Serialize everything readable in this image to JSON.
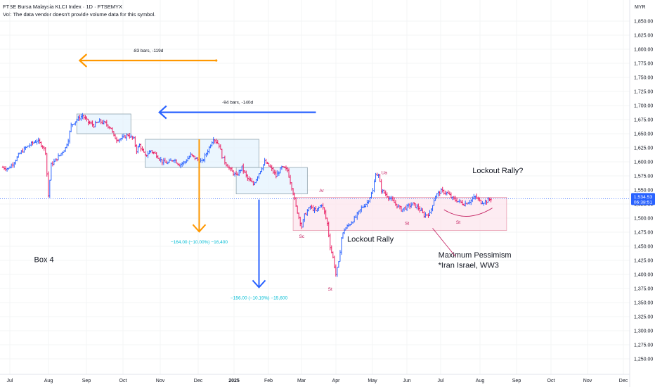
{
  "header": {
    "title": "FTSE Bursa Malaysia KLCI Index · 1D · FTSEMYX",
    "volume_note": "Vol: The data vendor doesn't provide volume data for this symbol."
  },
  "currency": "MYR",
  "price_badge": {
    "price": "1,534.53",
    "countdown": "06:38:51",
    "color": "#2962ff"
  },
  "colors": {
    "up": "#2962ff",
    "down": "#e91e63",
    "orange": "#ff9800",
    "blue": "#2962ff",
    "box": "#e3f2fd",
    "pink_box": "#fce4ec",
    "measure_text": "#00bcd4",
    "annotation": "#c2185b"
  },
  "chart_data": {
    "type": "ohlc",
    "y_ticks": [
      1850,
      1825,
      1800,
      1775,
      1750,
      1725,
      1700,
      1675,
      1650,
      1625,
      1600,
      1575,
      1550,
      1525,
      1500,
      1475,
      1450,
      1425,
      1400,
      1375,
      1350,
      1325,
      1300,
      1275,
      1250
    ],
    "y_tick_labels": [
      "1,850.00",
      "1,825.00",
      "1,800.00",
      "1,775.00",
      "1,750.00",
      "1,725.00",
      "1,700.00",
      "1,675.00",
      "1,650.00",
      "1,625.00",
      "1,600.00",
      "1,575.00",
      "1,550.00",
      "1,525.00",
      "1,500.00",
      "1,475.00",
      "1,450.00",
      "1,425.00",
      "1,400.00",
      "1,375.00",
      "1,350.00",
      "1,325.00",
      "1,300.00",
      "1,275.00",
      "1,250.00"
    ],
    "x_ticks": [
      "Jul",
      "Aug",
      "Sep",
      "Oct",
      "Nov",
      "Dec",
      "2025",
      "Feb",
      "Mar",
      "Apr",
      "May",
      "Jun",
      "Jul",
      "Aug",
      "Sep",
      "Oct",
      "Nov",
      "Dec"
    ],
    "series_path": [
      [
        0,
        1590
      ],
      [
        2,
        1588
      ],
      [
        4,
        1600
      ],
      [
        6,
        1615
      ],
      [
        8,
        1625
      ],
      [
        10,
        1632
      ],
      [
        12,
        1638
      ],
      [
        14,
        1628
      ],
      [
        15,
        1618
      ],
      [
        16,
        1540
      ],
      [
        17,
        1595
      ],
      [
        18,
        1600
      ],
      [
        20,
        1612
      ],
      [
        22,
        1625
      ],
      [
        23,
        1640
      ],
      [
        24,
        1665
      ],
      [
        26,
        1675
      ],
      [
        28,
        1682
      ],
      [
        30,
        1670
      ],
      [
        32,
        1665
      ],
      [
        34,
        1672
      ],
      [
        36,
        1668
      ],
      [
        38,
        1660
      ],
      [
        39,
        1645
      ],
      [
        40,
        1640
      ],
      [
        42,
        1642
      ],
      [
        44,
        1648
      ],
      [
        46,
        1640
      ],
      [
        47,
        1620
      ],
      [
        48,
        1630
      ],
      [
        50,
        1610
      ],
      [
        52,
        1620
      ],
      [
        54,
        1612
      ],
      [
        56,
        1600
      ],
      [
        58,
        1598
      ],
      [
        60,
        1605
      ],
      [
        62,
        1595
      ],
      [
        64,
        1600
      ],
      [
        66,
        1612
      ],
      [
        68,
        1605
      ],
      [
        70,
        1600
      ],
      [
        72,
        1620
      ],
      [
        74,
        1642
      ],
      [
        76,
        1630
      ],
      [
        77,
        1610
      ],
      [
        78,
        1600
      ],
      [
        80,
        1585
      ],
      [
        82,
        1575
      ],
      [
        84,
        1590
      ],
      [
        86,
        1570
      ],
      [
        88,
        1560
      ],
      [
        90,
        1580
      ],
      [
        92,
        1600
      ],
      [
        94,
        1590
      ],
      [
        96,
        1575
      ],
      [
        98,
        1590
      ],
      [
        100,
        1585
      ],
      [
        101,
        1565
      ],
      [
        102,
        1545
      ],
      [
        103,
        1520
      ],
      [
        104,
        1502
      ],
      [
        105,
        1485
      ],
      [
        106,
        1505
      ],
      [
        108,
        1520
      ],
      [
        110,
        1512
      ],
      [
        112,
        1525
      ],
      [
        113,
        1510
      ],
      [
        114,
        1490
      ],
      [
        115,
        1450
      ],
      [
        116,
        1430
      ],
      [
        117,
        1400
      ],
      [
        118,
        1420
      ],
      [
        119,
        1465
      ],
      [
        120,
        1480
      ],
      [
        122,
        1490
      ],
      [
        124,
        1502
      ],
      [
        126,
        1518
      ],
      [
        128,
        1528
      ],
      [
        130,
        1548
      ],
      [
        131,
        1580
      ],
      [
        132,
        1575
      ],
      [
        133,
        1550
      ],
      [
        134,
        1545
      ],
      [
        136,
        1535
      ],
      [
        138,
        1525
      ],
      [
        140,
        1515
      ],
      [
        142,
        1520
      ],
      [
        144,
        1525
      ],
      [
        146,
        1518
      ],
      [
        148,
        1505
      ],
      [
        150,
        1508
      ],
      [
        151,
        1525
      ],
      [
        152,
        1540
      ],
      [
        154,
        1548
      ],
      [
        156,
        1545
      ],
      [
        158,
        1535
      ],
      [
        160,
        1530
      ],
      [
        162,
        1525
      ],
      [
        164,
        1530
      ],
      [
        166,
        1538
      ],
      [
        168,
        1528
      ],
      [
        170,
        1530
      ],
      [
        172,
        1536
      ]
    ],
    "boxes": [
      {
        "x0": 26,
        "x1": 45,
        "y0": 1650,
        "y1": 1685
      },
      {
        "x0": 50,
        "x1": 90,
        "y0": 1590,
        "y1": 1640
      },
      {
        "x0": 82,
        "x1": 107,
        "y0": 1543,
        "y1": 1590
      },
      {
        "x0": 102,
        "x1": 177,
        "y0": 1478,
        "y1": 1537
      }
    ],
    "arrows": [
      {
        "x0": 75,
        "x1": 27,
        "y": 1780,
        "color": "orange",
        "label": "-83 bars, -119d"
      },
      {
        "x0": 110,
        "x1": 55,
        "y": 1688,
        "color": "blue",
        "label": "-94 bars, -140d"
      },
      {
        "x": 69,
        "y0": 1640,
        "y1": 1476,
        "color": "orange",
        "label": "−164.00 (−10.00%) −16,400"
      },
      {
        "x": 90,
        "y0": 1533,
        "y1": 1377,
        "color": "blue",
        "label": "−156.00 (−10.19%) −15,600"
      }
    ],
    "annotations": [
      {
        "text": "Box 4",
        "x": 11,
        "y": 1422
      },
      {
        "text": "Lockout Rally",
        "x": 121,
        "y": 1458
      },
      {
        "text": "Lockout Rally?",
        "x": 165,
        "y": 1580
      },
      {
        "text": "Maximum Pessimism",
        "x": 153,
        "y": 1430
      },
      {
        "text": "*Iran Israel, WW3",
        "x": 153,
        "y": 1412
      }
    ],
    "small_labels": [
      {
        "text": "Ar",
        "x": 112,
        "y": 1546
      },
      {
        "text": "Sc",
        "x": 105,
        "y": 1465
      },
      {
        "text": "St",
        "x": 115,
        "y": 1371
      },
      {
        "text": "Ua",
        "x": 134,
        "y": 1578
      },
      {
        "text": "St",
        "x": 142,
        "y": 1488
      },
      {
        "text": "St",
        "x": 160,
        "y": 1490
      }
    ],
    "current_price": 1534.53
  }
}
